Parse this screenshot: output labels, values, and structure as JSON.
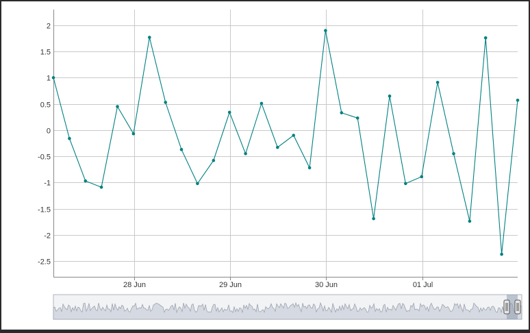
{
  "chart_data": {
    "type": "line",
    "title": "",
    "xlabel": "",
    "ylabel": "",
    "x_tick_labels": [
      "28 Jun",
      "29 Jun",
      "30 Jun",
      "01 Jul"
    ],
    "y_tick_labels": [
      "2",
      "1.5",
      "1",
      "0.5",
      "0",
      "-0.5",
      "-1",
      "-1.5",
      "-2",
      "-2.5"
    ],
    "y_ticks": [
      2,
      1.5,
      1,
      0.5,
      0,
      -0.5,
      -1,
      -1.5,
      -2,
      -2.5
    ],
    "ylim": [
      -2.8,
      2.3
    ],
    "x_range_days_start": "27 Jun, ~04:00",
    "series": [
      {
        "color": "#008080",
        "values": [
          1.0,
          -0.16,
          -0.97,
          -1.09,
          0.45,
          -0.07,
          1.77,
          0.53,
          -0.37,
          -1.02,
          -0.58,
          0.34,
          -0.45,
          0.51,
          -0.33,
          -0.1,
          -0.72,
          1.9,
          0.33,
          0.23,
          -1.69,
          0.65,
          -1.02,
          -0.89,
          0.91,
          -0.45,
          -1.74,
          1.76,
          -2.37,
          0.57
        ]
      }
    ],
    "grid": true,
    "legend": "none"
  },
  "navigator": {
    "fill_color": "#d5d9e1",
    "line_color": "#9ea3b0",
    "selected_fill": "#8d9ab0",
    "handle_color": "#e8e8e8"
  }
}
